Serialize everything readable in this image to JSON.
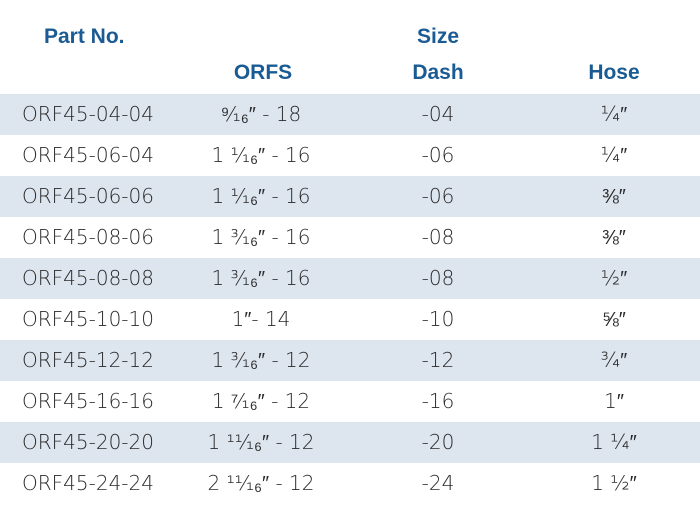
{
  "headers": {
    "part_no": "Part No.",
    "orfs": "ORFS",
    "size": "Size",
    "dash": "Dash",
    "hose": "Hose"
  },
  "rows": [
    {
      "part": "ORF45-04-04",
      "orfs": "⁹⁄₁₆″ - 18",
      "dash": "-04",
      "hose": "¼″"
    },
    {
      "part": "ORF45-06-04",
      "orfs": "1 ¹⁄₁₆″ - 16",
      "dash": "-06",
      "hose": "¼″"
    },
    {
      "part": "ORF45-06-06",
      "orfs": "1 ¹⁄₁₆″ - 16",
      "dash": "-06",
      "hose": "⅜″"
    },
    {
      "part": "ORF45-08-06",
      "orfs": "1 ³⁄₁₆″ - 16",
      "dash": "-08",
      "hose": "⅜″"
    },
    {
      "part": "ORF45-08-08",
      "orfs": "1 ³⁄₁₆″ - 16",
      "dash": "-08",
      "hose": "½″"
    },
    {
      "part": "ORF45-10-10",
      "orfs": "1″- 14",
      "dash": "-10",
      "hose": "⅝″"
    },
    {
      "part": "ORF45-12-12",
      "orfs": "1 ³⁄₁₆″ - 12",
      "dash": "-12",
      "hose": "¾″"
    },
    {
      "part": "ORF45-16-16",
      "orfs": "1 ⁷⁄₁₆″ - 12",
      "dash": "-16",
      "hose": "1″"
    },
    {
      "part": "ORF45-20-20",
      "orfs": "1 ¹¹⁄₁₆″ - 12",
      "dash": "-20",
      "hose": "1 ¼″"
    },
    {
      "part": "ORF45-24-24",
      "orfs": "2 ¹¹⁄₁₆″ - 12",
      "dash": "-24",
      "hose": "1 ½″"
    }
  ],
  "colors": {
    "header_text": "#1b5b93",
    "shaded_row": "#dde5ef",
    "cell_text": "#2a2a2a"
  }
}
